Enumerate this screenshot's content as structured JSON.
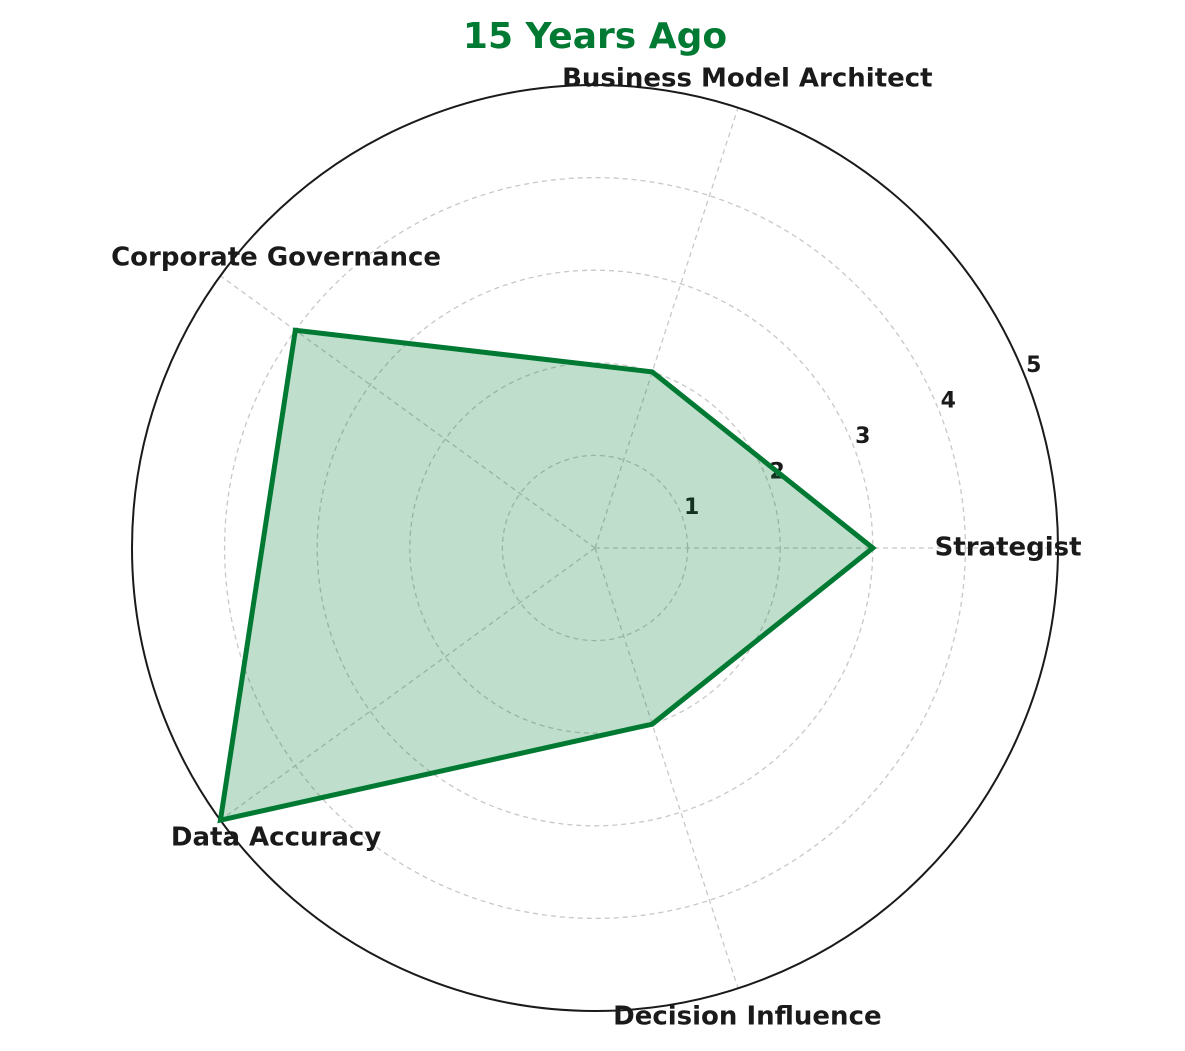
{
  "chart_data": {
    "type": "radar",
    "title": "15 Years Ago",
    "categories": [
      "Strategist",
      "Business Model Architect",
      "Corporate Governance",
      "Data Accuracy",
      "Decision Influence"
    ],
    "values": [
      3,
      2,
      4,
      5,
      2
    ],
    "color": "#007a33",
    "ylim": [
      0,
      5
    ],
    "yticks": [
      1,
      2,
      3,
      4,
      5
    ],
    "grid": true
  }
}
